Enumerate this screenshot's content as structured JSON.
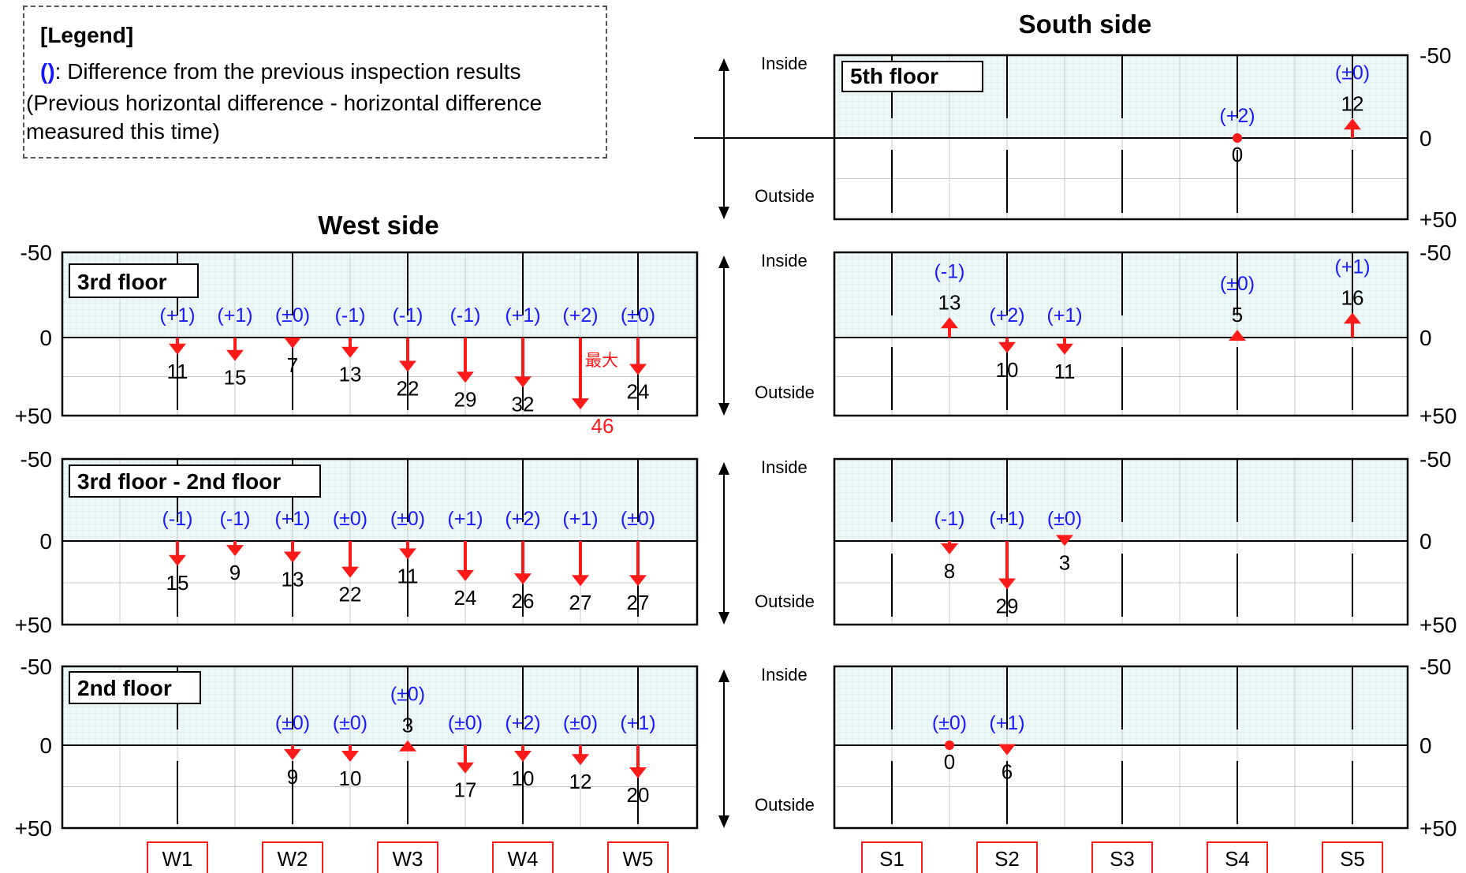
{
  "legend": {
    "title": "[Legend]",
    "paren_symbol": "()",
    "line1": ": Difference from the previous inspection results",
    "line2": "(Previous horizontal difference - horizontal difference measured this time)"
  },
  "chart_data": [
    {
      "type": "arrow-plot",
      "group": "West side",
      "title": "3rd floor",
      "x_labels": [
        "W1",
        "W2",
        "W3",
        "W4",
        "W5"
      ],
      "ylim": [
        -50,
        50
      ],
      "y_tick_labels": [
        "-50",
        "0",
        "+50"
      ],
      "points": [
        {
          "value": 11,
          "diff": "(+1)"
        },
        {
          "value": 15,
          "diff": "(+1)"
        },
        {
          "value": 7,
          "diff": "(±0)"
        },
        {
          "value": 13,
          "diff": "(-1)"
        },
        {
          "value": 22,
          "diff": "(-1)"
        },
        {
          "value": 29,
          "diff": "(-1)"
        },
        {
          "value": 32,
          "diff": "(+1)"
        },
        {
          "value": 46,
          "diff": "(+2)",
          "note": "最大",
          "highlight": true
        },
        {
          "value": 24,
          "diff": "(±0)"
        }
      ]
    },
    {
      "type": "arrow-plot",
      "group": "West side",
      "title": "3rd floor - 2nd floor",
      "x_labels": [
        "W1",
        "W2",
        "W3",
        "W4",
        "W5"
      ],
      "ylim": [
        -50,
        50
      ],
      "y_tick_labels": [
        "-50",
        "0",
        "+50"
      ],
      "points": [
        {
          "value": 15,
          "diff": "(-1)"
        },
        {
          "value": 9,
          "diff": "(-1)"
        },
        {
          "value": 13,
          "diff": "(+1)"
        },
        {
          "value": 22,
          "diff": "(±0)"
        },
        {
          "value": 11,
          "diff": "(±0)"
        },
        {
          "value": 24,
          "diff": "(+1)"
        },
        {
          "value": 26,
          "diff": "(+2)"
        },
        {
          "value": 27,
          "diff": "(+1)"
        },
        {
          "value": 27,
          "diff": "(±0)"
        }
      ]
    },
    {
      "type": "arrow-plot",
      "group": "West side",
      "title": "2nd floor",
      "x_labels": [
        "W1",
        "W2",
        "W3",
        "W4",
        "W5"
      ],
      "ylim": [
        -50,
        50
      ],
      "y_tick_labels": [
        "-50",
        "0",
        "+50"
      ],
      "points": [
        {
          "value": null,
          "diff": ""
        },
        {
          "value": null,
          "diff": ""
        },
        {
          "value": 9,
          "diff": "(±0)"
        },
        {
          "value": 10,
          "diff": "(±0)"
        },
        {
          "value": -3,
          "diff": "(±0)"
        },
        {
          "value": 17,
          "diff": "(±0)"
        },
        {
          "value": 10,
          "diff": "(+2)"
        },
        {
          "value": 12,
          "diff": "(±0)"
        },
        {
          "value": 20,
          "diff": "(+1)"
        }
      ]
    },
    {
      "type": "arrow-plot",
      "group": "South side",
      "title": "5th floor",
      "x_labels": [
        "S1",
        "S2",
        "S3",
        "S4",
        "S5"
      ],
      "ylim": [
        -50,
        50
      ],
      "y_tick_labels": [
        "-50",
        "0",
        "+50"
      ],
      "direction_labels": [
        "Inside",
        "Outside"
      ],
      "points": [
        {
          "value": null,
          "diff": ""
        },
        {
          "value": null,
          "diff": ""
        },
        {
          "value": null,
          "diff": ""
        },
        {
          "value": null,
          "diff": ""
        },
        {
          "value": null,
          "diff": ""
        },
        {
          "value": null,
          "diff": ""
        },
        {
          "value": 0,
          "diff": "(+2)"
        },
        {
          "value": null,
          "diff": ""
        },
        {
          "value": -12,
          "diff": "(±0)"
        }
      ]
    },
    {
      "type": "arrow-plot",
      "group": "South side",
      "title": "",
      "x_labels": [
        "S1",
        "S2",
        "S3",
        "S4",
        "S5"
      ],
      "ylim": [
        -50,
        50
      ],
      "y_tick_labels": [
        "-50",
        "0",
        "+50"
      ],
      "direction_labels": [
        "Inside",
        "Outside"
      ],
      "points": [
        {
          "value": null,
          "diff": ""
        },
        {
          "value": -13,
          "diff": "(-1)"
        },
        {
          "value": 10,
          "diff": "(+2)"
        },
        {
          "value": 11,
          "diff": "(+1)"
        },
        {
          "value": null,
          "diff": ""
        },
        {
          "value": null,
          "diff": ""
        },
        {
          "value": -5,
          "diff": "(±0)"
        },
        {
          "value": null,
          "diff": ""
        },
        {
          "value": -16,
          "diff": "(+1)"
        }
      ]
    },
    {
      "type": "arrow-plot",
      "group": "South side",
      "title": "",
      "x_labels": [
        "S1",
        "S2",
        "S3",
        "S4",
        "S5"
      ],
      "ylim": [
        -50,
        50
      ],
      "y_tick_labels": [
        "-50",
        "0",
        "+50"
      ],
      "direction_labels": [
        "Inside",
        "Outside"
      ],
      "points": [
        {
          "value": null,
          "diff": ""
        },
        {
          "value": 8,
          "diff": "(-1)"
        },
        {
          "value": 29,
          "diff": "(+1)"
        },
        {
          "value": 3,
          "diff": "(±0)"
        },
        {
          "value": null,
          "diff": ""
        },
        {
          "value": null,
          "diff": ""
        },
        {
          "value": null,
          "diff": ""
        },
        {
          "value": null,
          "diff": ""
        },
        {
          "value": null,
          "diff": ""
        }
      ]
    },
    {
      "type": "arrow-plot",
      "group": "South side",
      "title": "",
      "x_labels": [
        "S1",
        "S2",
        "S3",
        "S4",
        "S5"
      ],
      "ylim": [
        -50,
        50
      ],
      "y_tick_labels": [
        "-50",
        "0",
        "+50"
      ],
      "direction_labels": [
        "Inside",
        "Outside"
      ],
      "points": [
        {
          "value": null,
          "diff": ""
        },
        {
          "value": 0,
          "diff": "(±0)"
        },
        {
          "value": 6,
          "diff": "(+1)"
        },
        {
          "value": null,
          "diff": ""
        },
        {
          "value": null,
          "diff": ""
        },
        {
          "value": null,
          "diff": ""
        },
        {
          "value": null,
          "diff": ""
        },
        {
          "value": null,
          "diff": ""
        },
        {
          "value": null,
          "diff": ""
        }
      ]
    }
  ],
  "group_titles": {
    "west": "West side",
    "south": "South side"
  },
  "colors": {
    "arrow": "#ff1a1a",
    "diff": "#1a1aff",
    "inside_band": "#eaf6f6",
    "x_label_border": "#ff1a1a"
  }
}
